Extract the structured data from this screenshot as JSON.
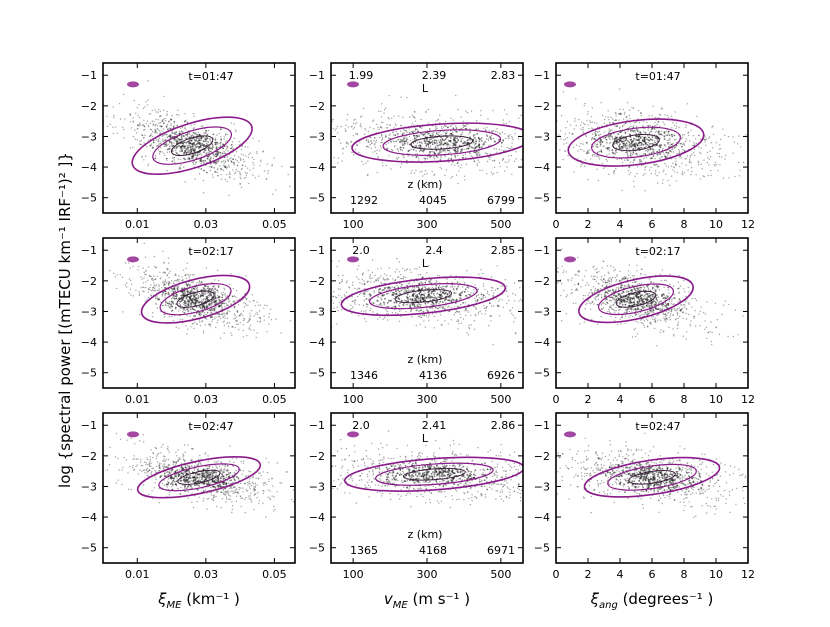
{
  "figure": {
    "ylabel": "log {spectral power [(mTECU km⁻¹ IRF⁻¹)² ]}"
  },
  "chart_data": {
    "type": "scatter",
    "columns": [
      {
        "xlabel_symbol": "ξ",
        "xlabel_sub": "ME",
        "xlabel_units": " (km⁻¹ )",
        "xlim": [
          0.0,
          0.056
        ],
        "xticks": [
          0.01,
          0.03,
          0.05
        ],
        "xtick_labels": [
          "0.01",
          "0.03",
          "0.05"
        ]
      },
      {
        "xlabel_symbol": "v",
        "xlabel_sub": "ME",
        "xlabel_units": " (m s⁻¹ )",
        "xlim": [
          40,
          560
        ],
        "xticks": [
          100,
          300,
          500
        ],
        "xtick_labels": [
          "100",
          "300",
          "500"
        ]
      },
      {
        "xlabel_symbol": "ξ",
        "xlabel_sub": "ang",
        "xlabel_units": " (degrees⁻¹ )",
        "xlim": [
          0,
          12
        ],
        "xticks": [
          0,
          2,
          4,
          6,
          8,
          10,
          12
        ],
        "xtick_labels": [
          "0",
          "2",
          "4",
          "6",
          "8",
          "10",
          "12"
        ]
      }
    ],
    "ylim": [
      -5.5,
      -0.6
    ],
    "yticks": [
      -1,
      -2,
      -3,
      -4,
      -5
    ],
    "ytick_labels": [
      "−1",
      "−2",
      "−3",
      "−4",
      "−5"
    ],
    "rows": [
      {
        "time": "t=01:47",
        "L_values": [
          "1.99",
          "2.39",
          "2.83"
        ],
        "L_label": "L",
        "z_label": "z (km)",
        "z_values": [
          "1292",
          "4045",
          "6799"
        ],
        "clusters": [
          {
            "col": 0,
            "cx": 0.026,
            "cy": -3.3,
            "sx": 0.009,
            "sy": 0.45,
            "tilt": -30,
            "n": 260
          },
          {
            "col": 1,
            "cx": 340,
            "cy": -3.2,
            "sx": 120,
            "sy": 0.38,
            "tilt": -6,
            "n": 260
          },
          {
            "col": 2,
            "cx": 5.0,
            "cy": -3.2,
            "sx": 2.1,
            "sy": 0.45,
            "tilt": -12,
            "n": 260
          }
        ]
      },
      {
        "time": "t=02:17",
        "L_values": [
          "2.0",
          "2.4",
          "2.85"
        ],
        "L_label": "L",
        "z_label": "z (km)",
        "z_values": [
          "1346",
          "4136",
          "6926"
        ],
        "clusters": [
          {
            "col": 0,
            "cx": 0.027,
            "cy": -2.6,
            "sx": 0.008,
            "sy": 0.4,
            "tilt": -25,
            "n": 260
          },
          {
            "col": 1,
            "cx": 290,
            "cy": -2.5,
            "sx": 110,
            "sy": 0.35,
            "tilt": -10,
            "n": 260
          },
          {
            "col": 2,
            "cx": 5.0,
            "cy": -2.6,
            "sx": 1.8,
            "sy": 0.4,
            "tilt": -22,
            "n": 260
          }
        ]
      },
      {
        "time": "t=02:47",
        "L_values": [
          "2.0",
          "2.41",
          "2.86"
        ],
        "L_label": "L",
        "z_label": "z (km)",
        "z_values": [
          "1365",
          "4168",
          "6971"
        ],
        "clusters": [
          {
            "col": 0,
            "cx": 0.028,
            "cy": -2.7,
            "sx": 0.009,
            "sy": 0.33,
            "tilt": -20,
            "n": 260
          },
          {
            "col": 1,
            "cx": 320,
            "cy": -2.6,
            "sx": 120,
            "sy": 0.32,
            "tilt": -7,
            "n": 260
          },
          {
            "col": 2,
            "cx": 6.0,
            "cy": -2.7,
            "sx": 2.1,
            "sy": 0.35,
            "tilt": -14,
            "n": 260
          }
        ]
      }
    ],
    "colors": {
      "points": "#555555",
      "contour": "#8b1a8b",
      "contour_inner": "#3a1f3a"
    }
  }
}
